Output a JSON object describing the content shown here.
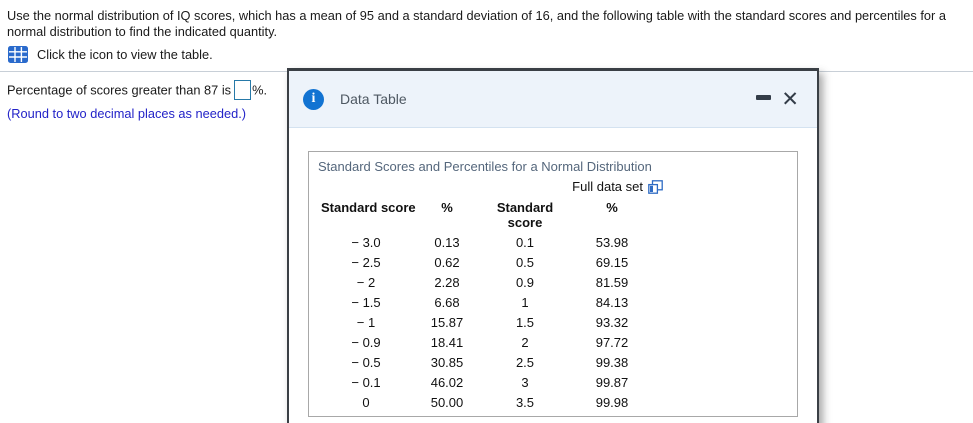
{
  "page": {
    "question_text": "Use the normal distribution of IQ scores, which has a mean of 95 and a standard deviation of 16, and the following table with the standard scores and percentiles for a normal distribution to find the indicated quantity.",
    "icon_instruction": "Click the icon to view the table.",
    "answer_prefix": "Percentage of scores greater than 87 is",
    "answer_value": "",
    "answer_suffix": "%.",
    "round_note": "(Round to two decimal places as needed.)"
  },
  "dialog": {
    "title": "Data Table",
    "minimize_icon": "minimize",
    "close_icon": "close",
    "table": {
      "title": "Standard Scores and Percentiles for a Normal Distribution",
      "full_data_set_label": "Full data set",
      "columns": [
        "Standard score",
        "%",
        "Standard score",
        "%"
      ],
      "rows": [
        [
          "− 3.0",
          "0.13",
          "0.1",
          "53.98"
        ],
        [
          "− 2.5",
          "0.62",
          "0.5",
          "69.15"
        ],
        [
          "− 2",
          "2.28",
          "0.9",
          "81.59"
        ],
        [
          "− 1.5",
          "6.68",
          "1",
          "84.13"
        ],
        [
          "− 1",
          "15.87",
          "1.5",
          "93.32"
        ],
        [
          "− 0.9",
          "18.41",
          "2",
          "97.72"
        ],
        [
          "− 0.5",
          "30.85",
          "2.5",
          "99.38"
        ],
        [
          "− 0.1",
          "46.02",
          "3",
          "99.87"
        ],
        [
          "0",
          "50.00",
          "3.5",
          "99.98"
        ]
      ]
    }
  },
  "colors": {
    "accent_blue": "#1273d2",
    "icon_blue": "#2a6acc",
    "link_blue": "#2e6bc4",
    "note_blue": "#2323c8",
    "input_border": "#2679a8",
    "header_bg": "#edf3fa"
  }
}
